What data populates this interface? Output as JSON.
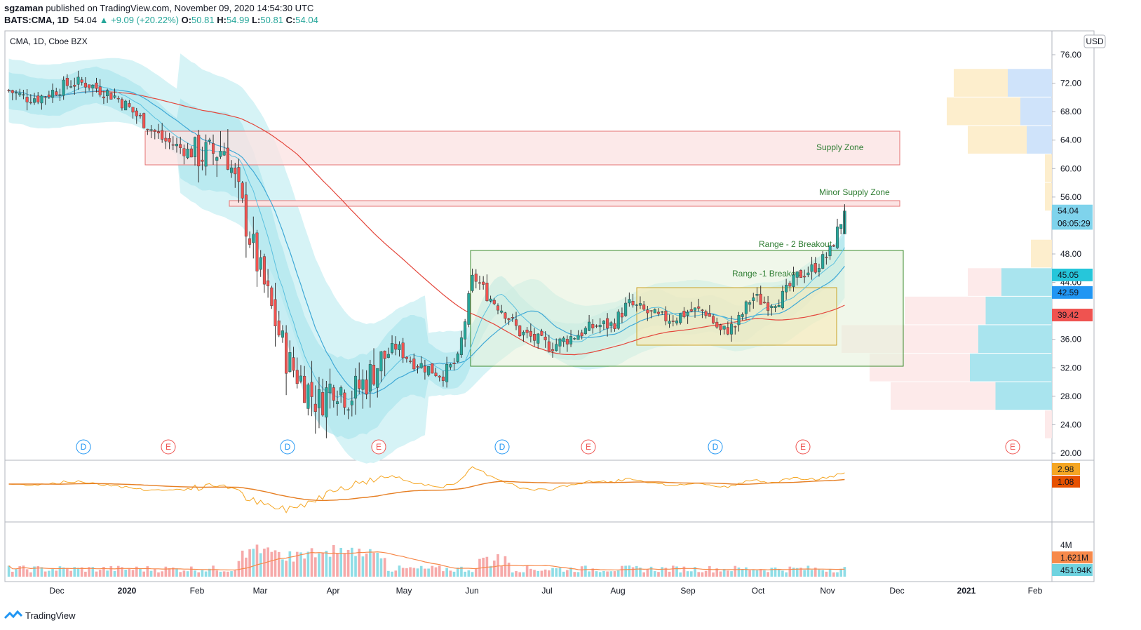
{
  "header": {
    "author": "sgzaman",
    "published_text": "published on TradingView.com, November 09, 2020 14:54:30 UTC",
    "symbol_line": "BATS:CMA, 1D",
    "last": "54.04",
    "change": "+9.09 (+20.22%)",
    "o_label": "O:",
    "o": "50.81",
    "h_label": "H:",
    "h": "54.99",
    "l_label": "L:",
    "l": "50.81",
    "c_label": "C:",
    "c": "54.04"
  },
  "pane_title": "CMA, 1D, Cboe BZX",
  "currency_button": "USD",
  "footer": {
    "brand": "TradingView"
  },
  "annotations": {
    "supply_zone": "Supply Zone",
    "minor_supply_zone": "Minor Supply Zone",
    "range2": "Range - 2 Breakout",
    "range1": "Range -1 Breakout"
  },
  "colors": {
    "up": "#26a69a",
    "down": "#ef5350",
    "ma_fast": "#3fa9d6",
    "ma_slow": "#e4473c",
    "band": "#b7e9f0",
    "supply": "#f9d8d8",
    "range2": "#e3efd6",
    "range1": "#f6e8b8"
  },
  "chart_data": [
    {
      "type": "candlestick",
      "title": "CMA, 1D, Cboe BZX",
      "x_labels": [
        "Dec",
        "2020",
        "Feb",
        "Mar",
        "Apr",
        "May",
        "Jun",
        "Jul",
        "Aug",
        "Sep",
        "Oct",
        "Nov",
        "Dec",
        "2021",
        "Feb"
      ],
      "y_ticks": [
        "76.00",
        "72.00",
        "68.00",
        "64.00",
        "60.00",
        "56.00",
        "48.00",
        "44.00",
        "36.00",
        "32.00",
        "28.00",
        "24.00",
        "20.00"
      ],
      "ylim": [
        20,
        77
      ],
      "price_path": [
        71,
        70,
        70,
        71,
        72,
        72,
        71,
        70,
        68,
        66,
        64,
        63,
        62,
        62,
        63,
        55,
        47,
        40,
        33,
        30,
        27,
        30,
        28,
        30,
        33,
        35,
        33,
        32,
        31,
        33,
        45,
        42,
        40,
        37,
        36,
        35,
        36,
        37,
        38,
        38,
        41,
        40,
        39,
        39,
        40,
        40,
        37,
        38,
        42,
        41,
        42,
        45,
        46,
        48,
        54
      ],
      "price_labels": [
        {
          "value": "54.04",
          "color": "#7fd3ec"
        },
        {
          "value": "06:05:29",
          "color": "#7fd3ec"
        },
        {
          "value": "45.05",
          "color": "#26c6da"
        },
        {
          "value": "42.59",
          "color": "#2196f3"
        },
        {
          "value": "39.42",
          "color": "#ef5350"
        }
      ],
      "zones": [
        {
          "label": "Supply Zone",
          "from": 61,
          "to": 65.5
        },
        {
          "label": "Minor Supply Zone",
          "from": 55.5,
          "to": 56.1
        },
        {
          "label": "Range - 2 Breakout",
          "from": 33,
          "to": 49
        },
        {
          "label": "Range -1 Breakout",
          "from": 35.8,
          "to": 43.8
        }
      ],
      "events": [
        "D",
        "E",
        "D",
        "E",
        "D",
        "E",
        "D",
        "E",
        "E"
      ]
    },
    {
      "type": "line",
      "title": "",
      "labels": [
        "2.98",
        "1.08"
      ],
      "label_colors": [
        "#f5a623",
        "#e65100"
      ]
    },
    {
      "type": "bar",
      "title": "",
      "labels": [
        "4M",
        "1.621M",
        "451.94K"
      ],
      "label_colors": [
        "",
        "#f7894a",
        "#6fd3e0"
      ]
    }
  ]
}
